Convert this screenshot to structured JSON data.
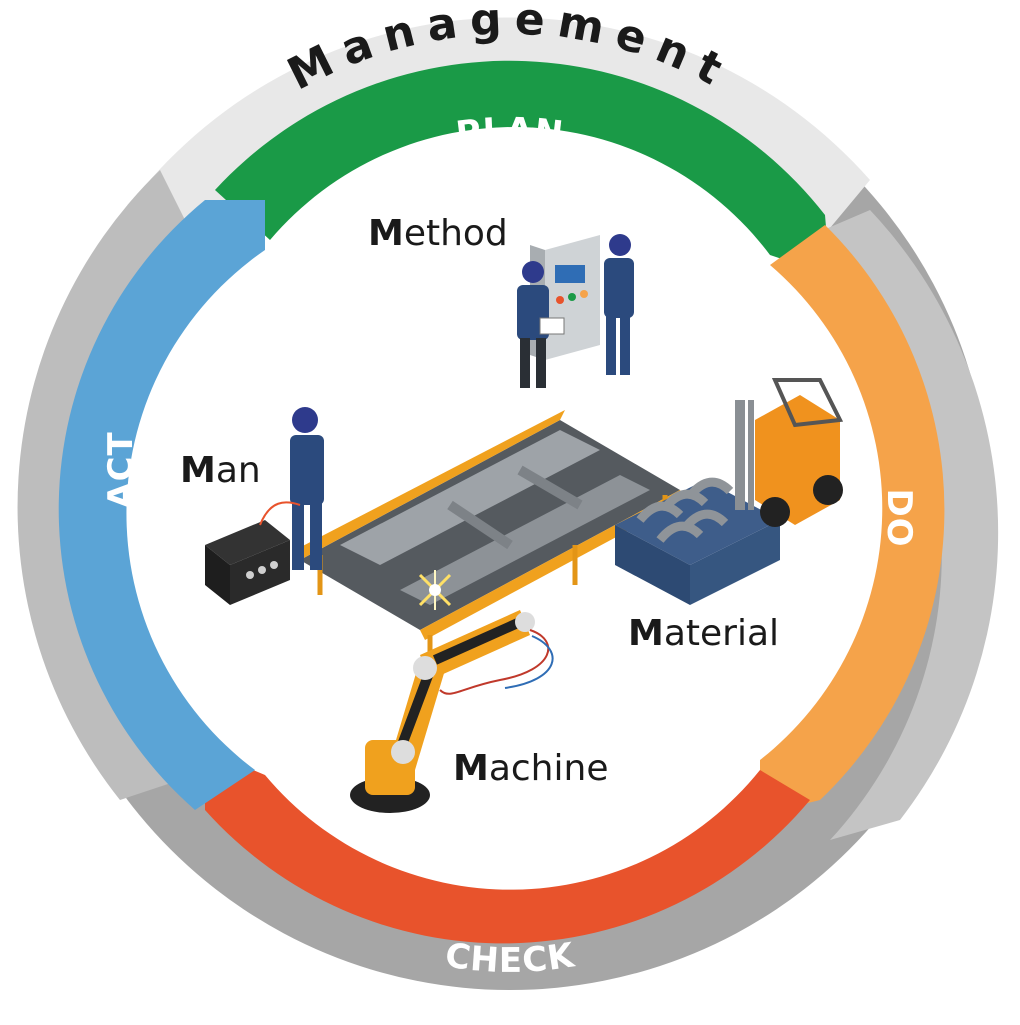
{
  "outer_ring": {
    "label": "Management"
  },
  "pdca": {
    "plan": "PLAN",
    "do": "DO",
    "check": "CHECK",
    "act": "ACT"
  },
  "factors": {
    "method": {
      "initial": "M",
      "rest": "ethod"
    },
    "man": {
      "initial": "M",
      "rest": "an"
    },
    "material": {
      "initial": "M",
      "rest": "aterial"
    },
    "machine": {
      "initial": "M",
      "rest": "achine"
    }
  },
  "colors": {
    "plan": "#1a9a47",
    "do": "#f5a34a",
    "check": "#e8532c",
    "act": "#5ba4d6",
    "management": "#b3b3b3",
    "management_light": "#e6e6e6"
  }
}
